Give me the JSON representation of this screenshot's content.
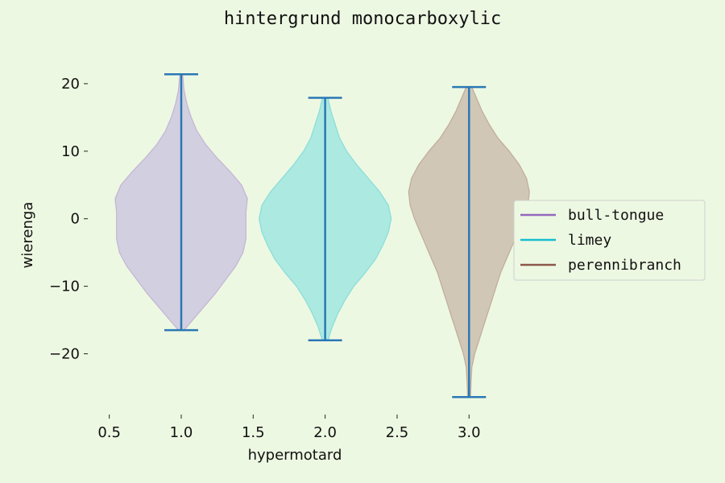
{
  "chart_data": {
    "type": "violin",
    "title": "hintergrund monocarboxylic",
    "xlabel": "hypermotard",
    "ylabel": "wierenga",
    "xlim": [
      0.25,
      3.2
    ],
    "ylim": [
      -29,
      25
    ],
    "x_ticks": [
      0.5,
      1.0,
      1.5,
      2.0,
      2.5,
      3.0
    ],
    "x_tick_labels": [
      "0.5",
      "1.0",
      "1.5",
      "2.0",
      "2.5",
      "3.0"
    ],
    "y_ticks": [
      20,
      10,
      0,
      -10,
      -20
    ],
    "y_tick_labels": [
      "20",
      "10",
      "0",
      "−10",
      "−20"
    ],
    "grid": false,
    "legend_position": "center-right",
    "whisker_color": "#2a78b5",
    "series": [
      {
        "name": "bull-tongue",
        "position": 1.0,
        "color": "#9467bd",
        "fill": "#d2cfe0",
        "min": -16.5,
        "max": 21.4,
        "profile": [
          [
            -16.5,
            0.02
          ],
          [
            -15,
            0.08
          ],
          [
            -13,
            0.16
          ],
          [
            -11,
            0.24
          ],
          [
            -9,
            0.31
          ],
          [
            -7,
            0.38
          ],
          [
            -5,
            0.43
          ],
          [
            -3,
            0.45
          ],
          [
            -1,
            0.45
          ],
          [
            1,
            0.45
          ],
          [
            3,
            0.46
          ],
          [
            5,
            0.42
          ],
          [
            7,
            0.34
          ],
          [
            9,
            0.25
          ],
          [
            11,
            0.17
          ],
          [
            13,
            0.11
          ],
          [
            15,
            0.07
          ],
          [
            17,
            0.04
          ],
          [
            19,
            0.02
          ],
          [
            21.4,
            0.01
          ]
        ]
      },
      {
        "name": "limey",
        "position": 2.0,
        "color": "#17becf",
        "fill": "#ace9e0",
        "min": -18.0,
        "max": 17.9,
        "profile": [
          [
            -18,
            0.02
          ],
          [
            -16,
            0.05
          ],
          [
            -14,
            0.09
          ],
          [
            -12,
            0.14
          ],
          [
            -10,
            0.2
          ],
          [
            -8,
            0.28
          ],
          [
            -6,
            0.35
          ],
          [
            -4,
            0.4
          ],
          [
            -2,
            0.44
          ],
          [
            0,
            0.46
          ],
          [
            2,
            0.44
          ],
          [
            4,
            0.38
          ],
          [
            6,
            0.3
          ],
          [
            8,
            0.22
          ],
          [
            10,
            0.15
          ],
          [
            12,
            0.1
          ],
          [
            14,
            0.07
          ],
          [
            16,
            0.04
          ],
          [
            17.9,
            0.02
          ]
        ]
      },
      {
        "name": "perennibranch",
        "position": 3.0,
        "color": "#8c564b",
        "fill": "#d0c7b6",
        "min": -26.4,
        "max": 19.5,
        "profile": [
          [
            -26.4,
            0.01
          ],
          [
            -24,
            0.015
          ],
          [
            -22,
            0.02
          ],
          [
            -20,
            0.04
          ],
          [
            -18,
            0.07
          ],
          [
            -16,
            0.1
          ],
          [
            -14,
            0.13
          ],
          [
            -12,
            0.16
          ],
          [
            -10,
            0.19
          ],
          [
            -8,
            0.22
          ],
          [
            -6,
            0.26
          ],
          [
            -4,
            0.3
          ],
          [
            -2,
            0.34
          ],
          [
            0,
            0.38
          ],
          [
            2,
            0.41
          ],
          [
            4,
            0.42
          ],
          [
            6,
            0.4
          ],
          [
            8,
            0.35
          ],
          [
            10,
            0.28
          ],
          [
            12,
            0.2
          ],
          [
            14,
            0.14
          ],
          [
            16,
            0.09
          ],
          [
            18,
            0.05
          ],
          [
            19.5,
            0.02
          ]
        ]
      }
    ]
  }
}
